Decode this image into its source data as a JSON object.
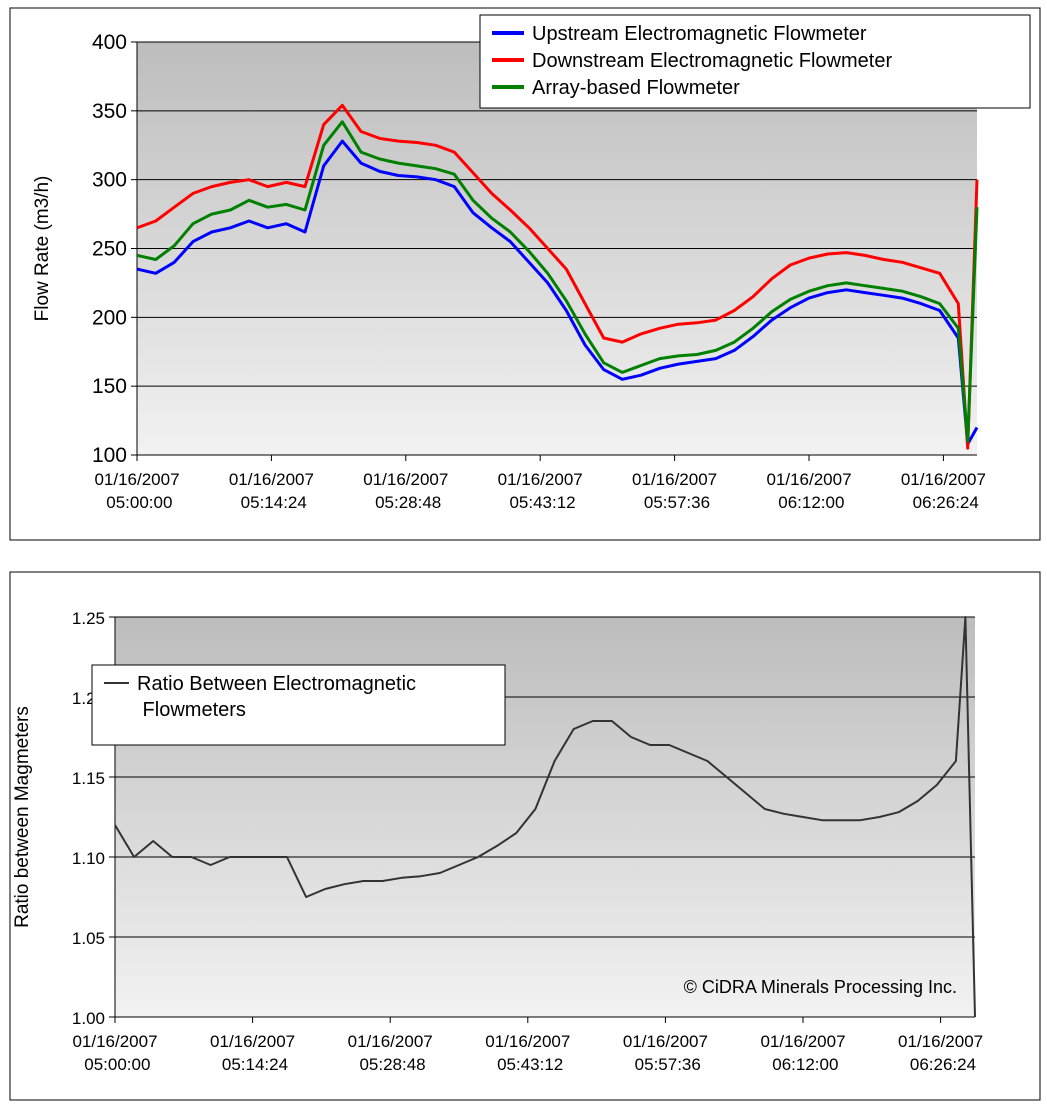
{
  "chart_data": [
    {
      "type": "line",
      "ylabel": "Flow Rate (m3/h)",
      "legend": "upper right",
      "grid": true,
      "x": [
        "01/16/2007 05:00:00",
        "01/16/2007 05:02:00",
        "01/16/2007 05:04:00",
        "01/16/2007 05:06:00",
        "01/16/2007 05:08:00",
        "01/16/2007 05:10:00",
        "01/16/2007 05:12:00",
        "01/16/2007 05:14:00",
        "01/16/2007 05:16:00",
        "01/16/2007 05:18:00",
        "01/16/2007 05:20:00",
        "01/16/2007 05:22:00",
        "01/16/2007 05:24:00",
        "01/16/2007 05:26:00",
        "01/16/2007 05:28:00",
        "01/16/2007 05:30:00",
        "01/16/2007 05:32:00",
        "01/16/2007 05:34:00",
        "01/16/2007 05:36:00",
        "01/16/2007 05:38:00",
        "01/16/2007 05:40:00",
        "01/16/2007 05:42:00",
        "01/16/2007 05:44:00",
        "01/16/2007 05:46:00",
        "01/16/2007 05:48:00",
        "01/16/2007 05:50:00",
        "01/16/2007 05:52:00",
        "01/16/2007 05:54:00",
        "01/16/2007 05:56:00",
        "01/16/2007 05:58:00",
        "01/16/2007 06:00:00",
        "01/16/2007 06:02:00",
        "01/16/2007 06:04:00",
        "01/16/2007 06:06:00",
        "01/16/2007 06:08:00",
        "01/16/2007 06:10:00",
        "01/16/2007 06:12:00",
        "01/16/2007 06:14:00",
        "01/16/2007 06:16:00",
        "01/16/2007 06:18:00",
        "01/16/2007 06:20:00",
        "01/16/2007 06:22:00",
        "01/16/2007 06:24:00",
        "01/16/2007 06:26:00",
        "01/16/2007 06:28:00",
        "01/16/2007 06:29:00",
        "01/16/2007 06:30:00"
      ],
      "series": [
        {
          "name": "Upstream Electromagnetic Flowmeter",
          "color": "#0000ff",
          "values": [
            235,
            232,
            240,
            255,
            262,
            265,
            270,
            265,
            268,
            262,
            310,
            328,
            312,
            306,
            303,
            302,
            300,
            295,
            276,
            265,
            255,
            240,
            225,
            205,
            180,
            162,
            155,
            158,
            163,
            166,
            168,
            170,
            176,
            186,
            198,
            207,
            214,
            218,
            220,
            218,
            216,
            214,
            210,
            205,
            185,
            108,
            120
          ]
        },
        {
          "name": "Downstream Electromagnetic Flowmeter",
          "color": "#ff0000",
          "values": [
            265,
            270,
            280,
            290,
            295,
            298,
            300,
            295,
            298,
            295,
            340,
            354,
            335,
            330,
            328,
            327,
            325,
            320,
            305,
            290,
            278,
            265,
            250,
            235,
            210,
            185,
            182,
            188,
            192,
            195,
            196,
            198,
            205,
            215,
            228,
            238,
            243,
            246,
            247,
            245,
            242,
            240,
            236,
            232,
            210,
            105,
            300
          ]
        },
        {
          "name": "Array-based Flowmeter",
          "color": "#008000",
          "values": [
            245,
            242,
            252,
            268,
            275,
            278,
            285,
            280,
            282,
            278,
            325,
            342,
            320,
            315,
            312,
            310,
            308,
            304,
            285,
            272,
            262,
            248,
            232,
            212,
            188,
            167,
            160,
            165,
            170,
            172,
            173,
            176,
            182,
            192,
            204,
            213,
            219,
            223,
            225,
            223,
            221,
            219,
            215,
            210,
            192,
            110,
            280
          ]
        }
      ],
      "xlim": [
        "01/16/2007 05:00:00",
        "01/16/2007 06:30:00"
      ],
      "xticks": [
        "01/16/2007 05:00:00",
        "01/16/2007 05:14:24",
        "01/16/2007 05:28:48",
        "01/16/2007 05:43:12",
        "01/16/2007 05:57:36",
        "01/16/2007 06:12:00",
        "01/16/2007 06:26:24"
      ],
      "ylim": [
        100,
        400
      ],
      "yticks": [
        100,
        150,
        200,
        250,
        300,
        350,
        400
      ]
    },
    {
      "type": "line",
      "ylabel": "Ratio between Magmeters",
      "legend": "upper left",
      "grid": true,
      "annotation": "© CiDRA Minerals Processing Inc.",
      "x": [
        "01/16/2007 05:00:00",
        "01/16/2007 05:02:00",
        "01/16/2007 05:04:00",
        "01/16/2007 05:06:00",
        "01/16/2007 05:08:00",
        "01/16/2007 05:10:00",
        "01/16/2007 05:12:00",
        "01/16/2007 05:14:00",
        "01/16/2007 05:16:00",
        "01/16/2007 05:18:00",
        "01/16/2007 05:20:00",
        "01/16/2007 05:22:00",
        "01/16/2007 05:24:00",
        "01/16/2007 05:26:00",
        "01/16/2007 05:28:00",
        "01/16/2007 05:30:00",
        "01/16/2007 05:32:00",
        "01/16/2007 05:34:00",
        "01/16/2007 05:36:00",
        "01/16/2007 05:38:00",
        "01/16/2007 05:40:00",
        "01/16/2007 05:42:00",
        "01/16/2007 05:44:00",
        "01/16/2007 05:46:00",
        "01/16/2007 05:48:00",
        "01/16/2007 05:50:00",
        "01/16/2007 05:52:00",
        "01/16/2007 05:54:00",
        "01/16/2007 05:56:00",
        "01/16/2007 05:58:00",
        "01/16/2007 06:00:00",
        "01/16/2007 06:02:00",
        "01/16/2007 06:04:00",
        "01/16/2007 06:06:00",
        "01/16/2007 06:08:00",
        "01/16/2007 06:10:00",
        "01/16/2007 06:12:00",
        "01/16/2007 06:14:00",
        "01/16/2007 06:16:00",
        "01/16/2007 06:18:00",
        "01/16/2007 06:20:00",
        "01/16/2007 06:22:00",
        "01/16/2007 06:24:00",
        "01/16/2007 06:26:00",
        "01/16/2007 06:28:00",
        "01/16/2007 06:29:00",
        "01/16/2007 06:30:00"
      ],
      "series": [
        {
          "name": "Ratio Between Electromagnetic Flowmeters",
          "color": "#333333",
          "values": [
            1.12,
            1.1,
            1.11,
            1.1,
            1.1,
            1.095,
            1.1,
            1.1,
            1.1,
            1.1,
            1.075,
            1.08,
            1.083,
            1.085,
            1.085,
            1.087,
            1.088,
            1.09,
            1.095,
            1.1,
            1.107,
            1.115,
            1.13,
            1.16,
            1.18,
            1.185,
            1.185,
            1.175,
            1.17,
            1.17,
            1.165,
            1.16,
            1.15,
            1.14,
            1.13,
            1.127,
            1.125,
            1.123,
            1.123,
            1.123,
            1.125,
            1.128,
            1.135,
            1.145,
            1.16,
            1.25,
            1.0
          ]
        }
      ],
      "xlim": [
        "01/16/2007 05:00:00",
        "01/16/2007 06:30:00"
      ],
      "xticks": [
        "01/16/2007 05:00:00",
        "01/16/2007 05:14:24",
        "01/16/2007 05:28:48",
        "01/16/2007 05:43:12",
        "01/16/2007 05:57:36",
        "01/16/2007 06:12:00",
        "01/16/2007 06:26:24"
      ],
      "ylim": [
        1,
        1.25
      ],
      "yticks": [
        {
          "value": 1,
          "label": "1.00"
        },
        {
          "value": 1.05,
          "label": "1.05"
        },
        {
          "value": 1.1,
          "label": "1.10"
        },
        {
          "value": 1.15,
          "label": "1.15"
        },
        {
          "value": 1.2,
          "label": "1.20"
        },
        {
          "value": 1.25,
          "label": "1.25"
        }
      ]
    }
  ]
}
